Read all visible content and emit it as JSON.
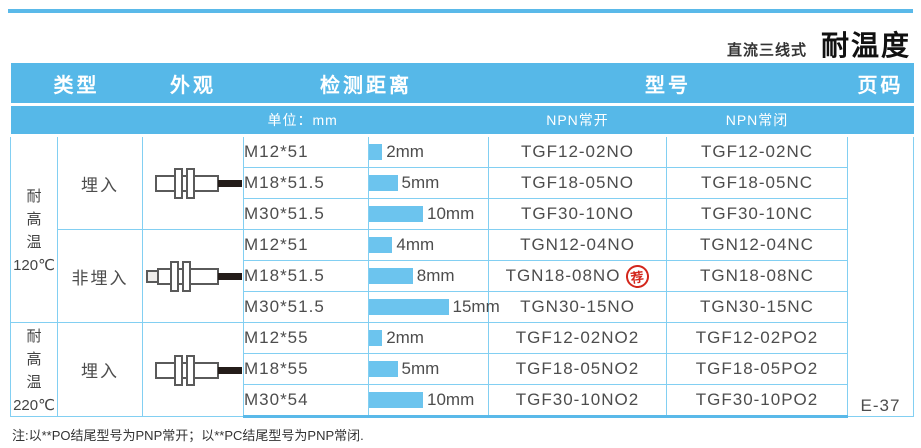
{
  "page": {
    "series_label": "直流三线式",
    "title": "耐温度",
    "page_code": "E-37",
    "footer_note": "注:以**PO结尾型号为PNP常开；以**PC结尾型号为PNP常闭."
  },
  "colors": {
    "header_blue": "#56b8e8",
    "grid_blue": "#82cff2",
    "bar_blue": "#6cc4ee",
    "rule_blue": "#5ab9e9",
    "badge_red": "#d3261b"
  },
  "table": {
    "headers": {
      "type": "类型",
      "appearance": "外观",
      "distance": "检测距离",
      "model": "型号",
      "page": "页码"
    },
    "subheaders": {
      "unit": "单位：mm",
      "npn_no": "NPN常开",
      "npn_nc": "NPN常闭"
    },
    "groups": [
      {
        "temp_label": "耐高温",
        "temp_value": "120℃",
        "sections": [
          {
            "mount": "埋入",
            "appearance_icon": "flush-sensor"
          },
          {
            "mount": "非埋入",
            "appearance_icon": "non-flush-sensor"
          }
        ]
      },
      {
        "temp_label": "耐高温",
        "temp_value": "220℃",
        "sections": [
          {
            "mount": "埋入",
            "appearance_icon": "flush-sensor"
          }
        ]
      }
    ]
  },
  "rows": [
    {
      "size": "M12*51",
      "distance_mm": 2,
      "distance_label": "2mm",
      "model_no": "TGF12-02NO",
      "model_nc": "TGF12-02NC"
    },
    {
      "size": "M18*51.5",
      "distance_mm": 5,
      "distance_label": "5mm",
      "model_no": "TGF18-05NO",
      "model_nc": "TGF18-05NC"
    },
    {
      "size": "M30*51.5",
      "distance_mm": 10,
      "distance_label": "10mm",
      "model_no": "TGF30-10NO",
      "model_nc": "TGF30-10NC"
    },
    {
      "size": "M12*51",
      "distance_mm": 4,
      "distance_label": "4mm",
      "model_no": "TGN12-04NO",
      "model_nc": "TGN12-04NC"
    },
    {
      "size": "M18*51.5",
      "distance_mm": 8,
      "distance_label": "8mm",
      "model_no": "TGN18-08NO",
      "model_nc": "TGN18-08NC"
    },
    {
      "size": "M30*51.5",
      "distance_mm": 15,
      "distance_label": "15mm",
      "model_no": "TGN30-15NO",
      "model_nc": "TGN30-15NC"
    },
    {
      "size": "M12*55",
      "distance_mm": 2,
      "distance_label": "2mm",
      "model_no": "TGF12-02NO2",
      "model_nc": "TGF12-02PO2"
    },
    {
      "size": "M18*55",
      "distance_mm": 5,
      "distance_label": "5mm",
      "model_no": "TGF18-05NO2",
      "model_nc": "TGF18-05PO2"
    },
    {
      "size": "M30*54",
      "distance_mm": 10,
      "distance_label": "10mm",
      "model_no": "TGF30-10NO2",
      "model_nc": "TGF30-10PO2"
    }
  ],
  "badge": {
    "text": "荐"
  }
}
